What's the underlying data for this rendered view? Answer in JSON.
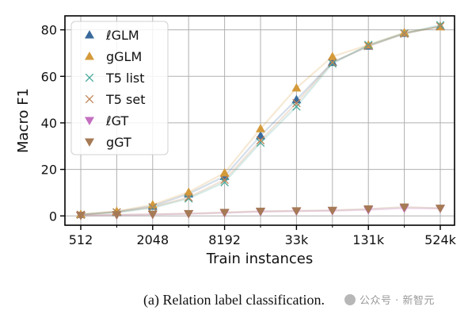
{
  "chart_data": {
    "type": "line",
    "xlabel": "Train instances",
    "ylabel": "Macro F1",
    "categories": [
      "512",
      "1024",
      "2048",
      "4096",
      "8192",
      "16k",
      "33k",
      "65k",
      "131k",
      "262k",
      "524k"
    ],
    "xtick_labels": [
      "512",
      "2048",
      "8192",
      "33k",
      "131k",
      "524k"
    ],
    "yticks": [
      0,
      20,
      40,
      60,
      80
    ],
    "ylim": [
      -4,
      86
    ],
    "grid": true,
    "legend_position": "upper-left",
    "series": [
      {
        "name": "ℓGLM",
        "marker": "triangle-up",
        "color": "#3a6a9c",
        "values": [
          0.6,
          1.8,
          4.2,
          9.5,
          17.0,
          34.5,
          50.0,
          66.0,
          73.0,
          78.5,
          81.5
        ]
      },
      {
        "name": "gGLM",
        "marker": "triangle-up",
        "color": "#d49a3a",
        "values": [
          0.7,
          2.0,
          4.8,
          10.2,
          18.5,
          37.5,
          55.0,
          68.5,
          73.5,
          78.8,
          81.3
        ]
      },
      {
        "name": "T5 list",
        "marker": "x",
        "color": "#45a89a",
        "values": [
          0.5,
          1.5,
          3.5,
          7.5,
          14.5,
          31.5,
          47.0,
          65.5,
          73.5,
          78.5,
          82.0
        ]
      },
      {
        "name": "T5 set",
        "marker": "x",
        "color": "#c08456",
        "values": [
          0.5,
          1.6,
          3.8,
          8.0,
          15.5,
          32.5,
          48.5,
          66.0,
          73.0,
          78.3,
          81.5
        ]
      },
      {
        "name": "ℓGT",
        "marker": "triangle-down",
        "color": "#c46fc0",
        "values": [
          0.2,
          0.4,
          0.6,
          0.9,
          1.3,
          1.8,
          2.0,
          2.2,
          2.6,
          3.3,
          3.2
        ]
      },
      {
        "name": "gGT",
        "marker": "triangle-down",
        "color": "#a57a55",
        "values": [
          0.2,
          0.5,
          0.7,
          1.0,
          1.5,
          2.0,
          2.2,
          2.4,
          3.0,
          3.8,
          3.3
        ]
      }
    ]
  },
  "caption": "(a) Relation label classification.",
  "watermark": "公众号 · 新智元"
}
